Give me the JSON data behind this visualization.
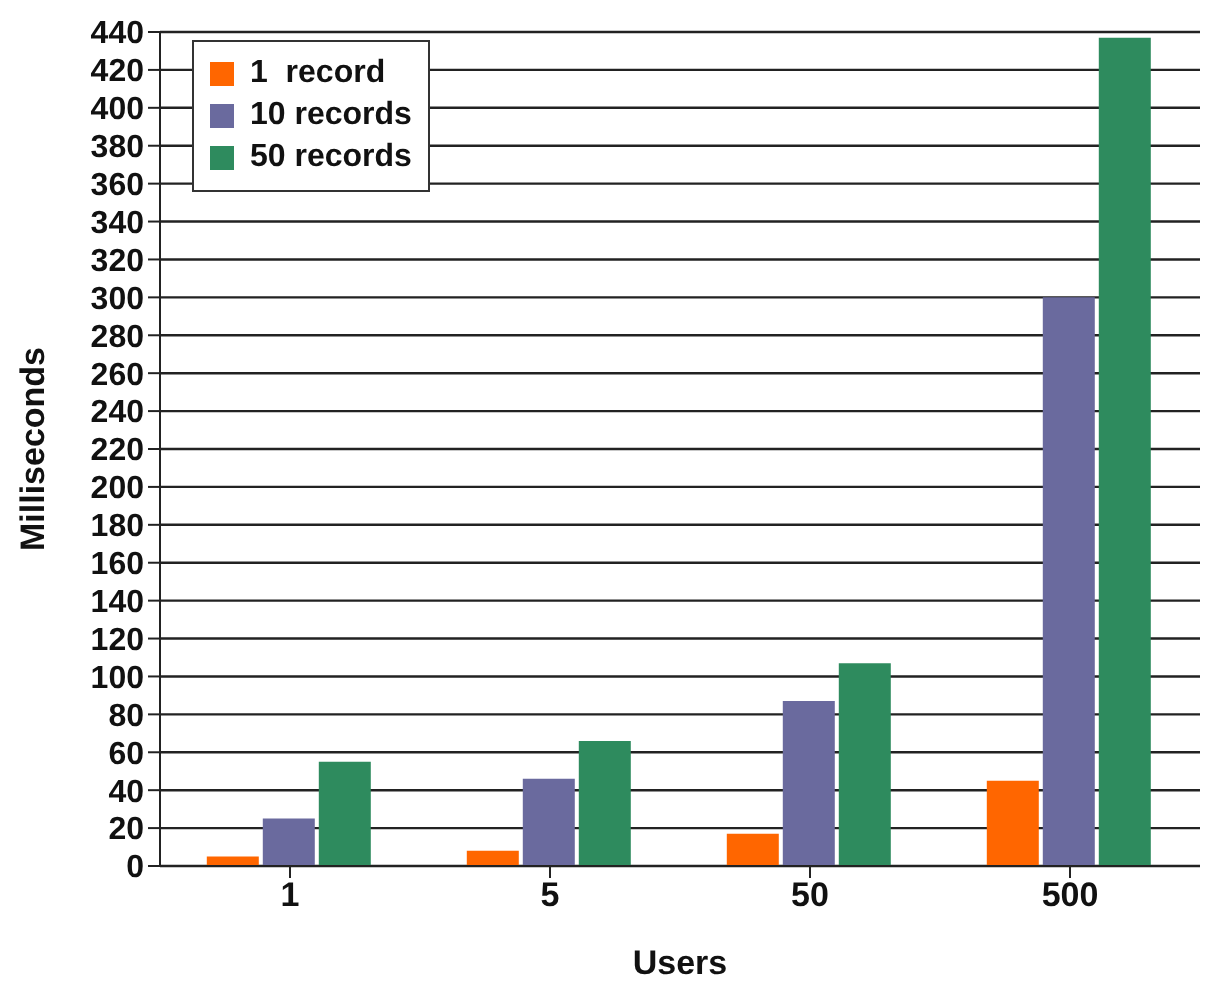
{
  "chart_data": {
    "type": "bar",
    "xlabel": "Users",
    "ylabel": "Milliseconds",
    "categories": [
      "1",
      "5",
      "50",
      "500"
    ],
    "series": [
      {
        "name": "1  record",
        "color": "#ff6600",
        "values": [
          5,
          8,
          17,
          45
        ]
      },
      {
        "name": "10 records",
        "color": "#6a6a9e",
        "values": [
          25,
          46,
          87,
          300
        ]
      },
      {
        "name": "50 records",
        "color": "#2e8b5e",
        "values": [
          55,
          66,
          107,
          437
        ]
      }
    ],
    "ylim": [
      0,
      440
    ],
    "yticks": [
      0,
      20,
      40,
      60,
      80,
      100,
      120,
      140,
      160,
      180,
      200,
      220,
      240,
      260,
      280,
      300,
      320,
      340,
      360,
      380,
      400,
      420,
      440
    ],
    "grid": "y",
    "legend": "top left"
  }
}
